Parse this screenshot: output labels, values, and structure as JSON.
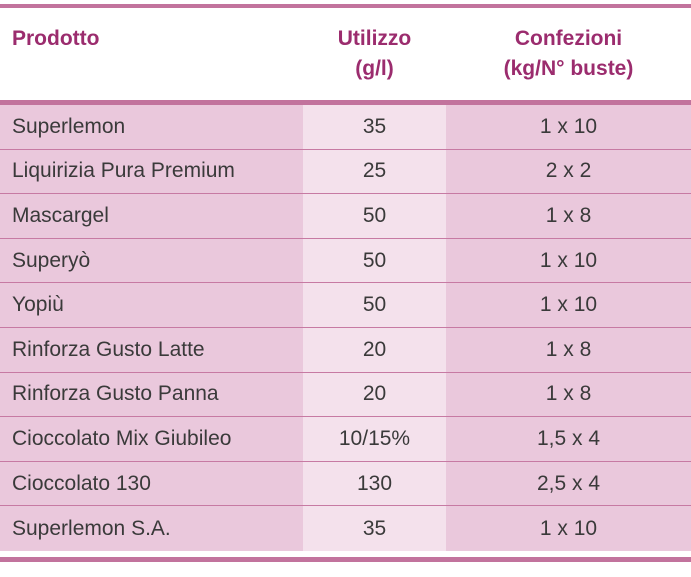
{
  "table": {
    "headers": {
      "product": "Prodotto",
      "usage_line1": "Utilizzo",
      "usage_line2": "(g/l)",
      "packs_line1": "Confezioni",
      "packs_line2": "(kg/N° buste)"
    },
    "rows": [
      {
        "product": "Superlemon",
        "usage": "35",
        "packs": "1 x 10"
      },
      {
        "product": "Liquirizia Pura Premium",
        "usage": "25",
        "packs": "2 x 2"
      },
      {
        "product": "Mascargel",
        "usage": "50",
        "packs": "1 x 8"
      },
      {
        "product": "Superyò",
        "usage": "50",
        "packs": "1 x 10"
      },
      {
        "product": "Yopiù",
        "usage": "50",
        "packs": "1 x 10"
      },
      {
        "product": "Rinforza Gusto Latte",
        "usage": "20",
        "packs": "1 x 8"
      },
      {
        "product": "Rinforza Gusto Panna",
        "usage": "20",
        "packs": "1 x 8"
      },
      {
        "product": "Cioccolato Mix Giubileo",
        "usage": "10/15%",
        "packs": "1,5 x 4"
      },
      {
        "product": "Cioccolato 130",
        "usage": "130",
        "packs": "2,5 x 4"
      },
      {
        "product": "Superlemon S.A.",
        "usage": "35",
        "packs": "1 x 10"
      }
    ]
  },
  "colors": {
    "accent": "#c2739d",
    "header_text": "#9b2c6e",
    "cell_dark": "#eac8dc",
    "cell_light": "#f4e1ec"
  }
}
